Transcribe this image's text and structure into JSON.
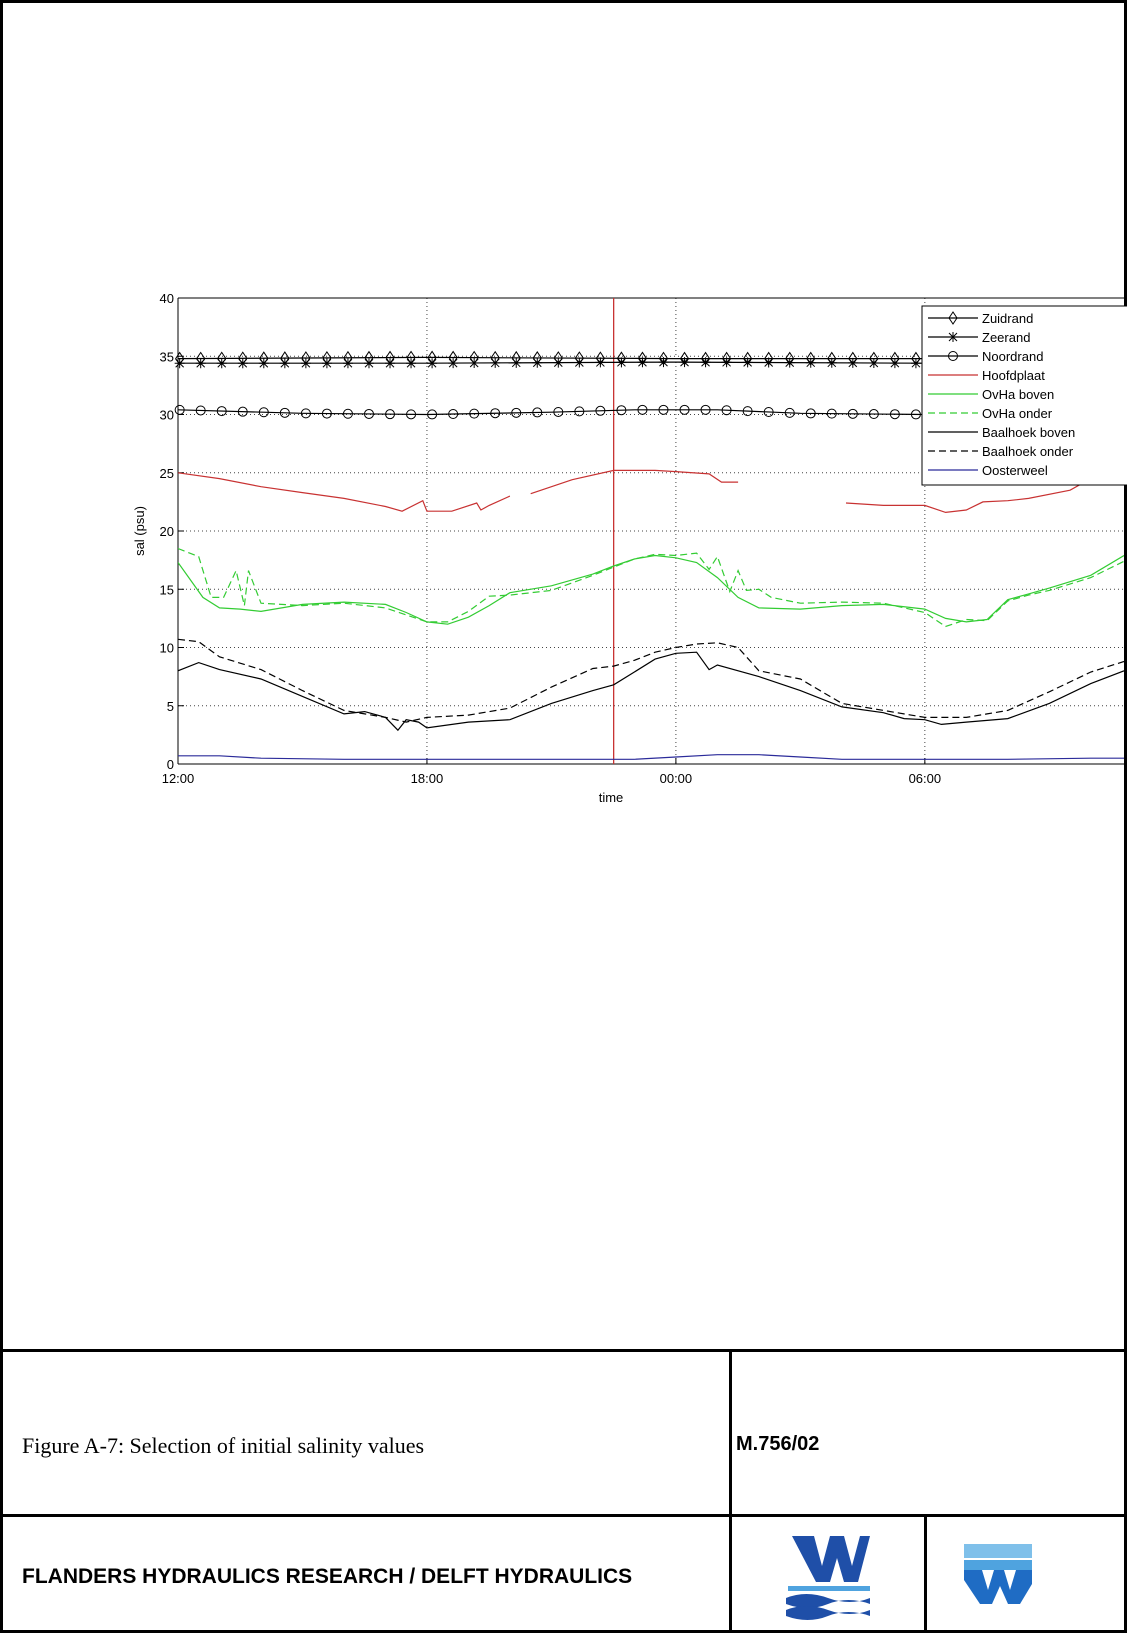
{
  "figure": {
    "caption": "Figure A-7: Selection of initial salinity values",
    "code": "M.756/02",
    "organization": "FLANDERS HYDRAULICS RESEARCH / DELFT HYDRAULICS",
    "logos": [
      {
        "name": "flanders-hydraulics-logo",
        "colors": [
          "#1f4fa8",
          "#4fa3df"
        ]
      },
      {
        "name": "delft-hydraulics-logo",
        "colors": [
          "#4fa3df",
          "#1f6cc4"
        ]
      }
    ]
  },
  "chart_data": {
    "type": "line",
    "title": "",
    "xlabel": "time",
    "ylabel": "sal (psu)",
    "xlim": [
      0,
      22.8
    ],
    "ylim": [
      0,
      40
    ],
    "x_unit": "hours since 12:00",
    "xticks": [
      0,
      6,
      12,
      18
    ],
    "xtick_labels": [
      "12:00",
      "18:00",
      "00:00",
      "06:00"
    ],
    "yticks": [
      0,
      5,
      10,
      15,
      20,
      25,
      30,
      35,
      40
    ],
    "ytick_labels": [
      "0",
      "5",
      "10",
      "15",
      "20",
      "25",
      "30",
      "35",
      "40"
    ],
    "grid": true,
    "legend_position": "top-right",
    "vertical_marker": {
      "x": 10.5,
      "color": "#c83232"
    },
    "series": [
      {
        "name": "Zuidrand",
        "color": "#000000",
        "style": "solid",
        "marker": "diamond",
        "points": [
          [
            0,
            34.8
          ],
          [
            6,
            34.9
          ],
          [
            12,
            34.8
          ],
          [
            18,
            34.8
          ],
          [
            22.8,
            34.9
          ]
        ]
      },
      {
        "name": "Zeerand",
        "color": "#000000",
        "style": "solid",
        "marker": "star",
        "points": [
          [
            0,
            34.4
          ],
          [
            6,
            34.4
          ],
          [
            12,
            34.5
          ],
          [
            18,
            34.4
          ],
          [
            22.8,
            34.4
          ]
        ]
      },
      {
        "name": "Noordrand",
        "color": "#000000",
        "style": "solid",
        "marker": "circle",
        "points": [
          [
            0,
            30.4
          ],
          [
            3,
            30.1
          ],
          [
            6,
            30.0
          ],
          [
            9,
            30.2
          ],
          [
            11,
            30.4
          ],
          [
            13,
            30.4
          ],
          [
            15,
            30.1
          ],
          [
            18,
            30.0
          ],
          [
            22.8,
            30.0
          ]
        ]
      },
      {
        "name": "Hoofdplaat",
        "color": "#c83232",
        "style": "solid",
        "marker": "none",
        "segments": [
          [
            [
              0,
              25.0
            ],
            [
              1,
              24.5
            ],
            [
              2,
              23.8
            ],
            [
              3,
              23.3
            ],
            [
              4,
              22.8
            ],
            [
              5,
              22.1
            ],
            [
              5.4,
              21.7
            ],
            [
              5.9,
              22.6
            ],
            [
              6,
              21.7
            ],
            [
              6.6,
              21.7
            ],
            [
              7.2,
              22.4
            ],
            [
              7.3,
              21.8
            ],
            [
              7.5,
              22.2
            ],
            [
              8,
              23.0
            ]
          ],
          [
            [
              8.5,
              23.2
            ],
            [
              9.5,
              24.4
            ],
            [
              10.5,
              25.2
            ],
            [
              11.5,
              25.2
            ],
            [
              12,
              25.1
            ],
            [
              12.8,
              24.9
            ],
            [
              13.1,
              24.2
            ],
            [
              13.5,
              24.2
            ]
          ],
          [
            [
              16.1,
              22.4
            ],
            [
              17,
              22.2
            ],
            [
              18,
              22.2
            ],
            [
              18.5,
              21.6
            ],
            [
              19,
              21.8
            ],
            [
              19.4,
              22.5
            ],
            [
              20,
              22.6
            ],
            [
              20.5,
              22.8
            ],
            [
              21.5,
              23.5
            ],
            [
              22,
              24.5
            ],
            [
              22.8,
              25.1
            ]
          ]
        ]
      },
      {
        "name": "OvHa boven",
        "color": "#33cc33",
        "style": "solid",
        "marker": "none",
        "points": [
          [
            0,
            17.3
          ],
          [
            0.6,
            14.3
          ],
          [
            1,
            13.4
          ],
          [
            1.5,
            13.3
          ],
          [
            2,
            13.1
          ],
          [
            3,
            13.7
          ],
          [
            4,
            13.9
          ],
          [
            5,
            13.7
          ],
          [
            5.5,
            13.0
          ],
          [
            6,
            12.2
          ],
          [
            6.5,
            12.0
          ],
          [
            7,
            12.6
          ],
          [
            7.5,
            13.6
          ],
          [
            8,
            14.7
          ],
          [
            9,
            15.3
          ],
          [
            10,
            16.3
          ],
          [
            10.5,
            17.0
          ],
          [
            11,
            17.6
          ],
          [
            11.5,
            17.9
          ],
          [
            12,
            17.7
          ],
          [
            12.5,
            17.3
          ],
          [
            13,
            16.0
          ],
          [
            13.5,
            14.3
          ],
          [
            14,
            13.4
          ],
          [
            15,
            13.3
          ],
          [
            16,
            13.6
          ],
          [
            17,
            13.7
          ],
          [
            18,
            13.3
          ],
          [
            18.5,
            12.5
          ],
          [
            19,
            12.2
          ],
          [
            19.5,
            12.4
          ],
          [
            20,
            14.1
          ],
          [
            20.5,
            14.6
          ],
          [
            21,
            15.1
          ],
          [
            22,
            16.2
          ],
          [
            22.8,
            17.9
          ]
        ]
      },
      {
        "name": "OvHa onder",
        "color": "#33cc33",
        "style": "dashed",
        "marker": "none",
        "points": [
          [
            0,
            18.5
          ],
          [
            0.5,
            17.8
          ],
          [
            0.8,
            14.3
          ],
          [
            1.1,
            14.3
          ],
          [
            1.4,
            16.6
          ],
          [
            1.6,
            13.6
          ],
          [
            1.7,
            16.6
          ],
          [
            2,
            13.8
          ],
          [
            3,
            13.6
          ],
          [
            4,
            13.8
          ],
          [
            5,
            13.4
          ],
          [
            6,
            12.2
          ],
          [
            6.5,
            12.2
          ],
          [
            7,
            13.1
          ],
          [
            7.5,
            14.4
          ],
          [
            8,
            14.5
          ],
          [
            9,
            14.9
          ],
          [
            10,
            16.2
          ],
          [
            10.5,
            16.9
          ],
          [
            11,
            17.6
          ],
          [
            11.5,
            18.0
          ],
          [
            12,
            17.9
          ],
          [
            12.5,
            18.1
          ],
          [
            12.8,
            16.7
          ],
          [
            13,
            17.8
          ],
          [
            13.3,
            14.8
          ],
          [
            13.5,
            16.6
          ],
          [
            13.7,
            14.9
          ],
          [
            14,
            15.0
          ],
          [
            14.3,
            14.3
          ],
          [
            15,
            13.8
          ],
          [
            16,
            13.9
          ],
          [
            17,
            13.8
          ],
          [
            18,
            13.0
          ],
          [
            18.5,
            11.8
          ],
          [
            19,
            12.4
          ],
          [
            19.5,
            12.3
          ],
          [
            20,
            14.0
          ],
          [
            20.5,
            14.5
          ],
          [
            21,
            14.9
          ],
          [
            22,
            16.0
          ],
          [
            22.8,
            17.4
          ]
        ]
      },
      {
        "name": "Baalhoek boven",
        "color": "#000000",
        "style": "solid",
        "marker": "none",
        "points": [
          [
            0,
            8.0
          ],
          [
            0.5,
            8.7
          ],
          [
            1,
            8.1
          ],
          [
            2,
            7.3
          ],
          [
            3,
            5.8
          ],
          [
            4,
            4.3
          ],
          [
            4.5,
            4.5
          ],
          [
            5,
            4.0
          ],
          [
            5.3,
            2.9
          ],
          [
            5.5,
            3.8
          ],
          [
            5.8,
            3.6
          ],
          [
            6,
            3.1
          ],
          [
            7,
            3.6
          ],
          [
            8,
            3.8
          ],
          [
            9,
            5.2
          ],
          [
            10,
            6.3
          ],
          [
            10.5,
            6.8
          ],
          [
            11,
            7.9
          ],
          [
            11.5,
            9.0
          ],
          [
            12,
            9.5
          ],
          [
            12.5,
            9.6
          ],
          [
            12.8,
            8.1
          ],
          [
            13,
            8.5
          ],
          [
            14,
            7.5
          ],
          [
            15,
            6.3
          ],
          [
            16,
            4.9
          ],
          [
            17,
            4.4
          ],
          [
            17.5,
            3.9
          ],
          [
            18,
            3.8
          ],
          [
            18.4,
            3.4
          ],
          [
            19,
            3.6
          ],
          [
            20,
            3.9
          ],
          [
            21,
            5.2
          ],
          [
            22,
            6.9
          ],
          [
            22.8,
            8.0
          ]
        ]
      },
      {
        "name": "Baalhoek onder",
        "color": "#000000",
        "style": "dashed",
        "marker": "none",
        "points": [
          [
            0,
            10.7
          ],
          [
            0.5,
            10.5
          ],
          [
            1,
            9.2
          ],
          [
            2,
            8.1
          ],
          [
            3,
            6.3
          ],
          [
            4,
            4.6
          ],
          [
            5,
            4.0
          ],
          [
            5.5,
            3.6
          ],
          [
            6,
            4.0
          ],
          [
            7,
            4.2
          ],
          [
            8,
            4.8
          ],
          [
            9,
            6.6
          ],
          [
            10,
            8.2
          ],
          [
            10.5,
            8.4
          ],
          [
            11,
            8.9
          ],
          [
            11.5,
            9.6
          ],
          [
            12,
            10.0
          ],
          [
            12.5,
            10.3
          ],
          [
            13,
            10.4
          ],
          [
            13.5,
            10.0
          ],
          [
            14,
            8.0
          ],
          [
            15,
            7.3
          ],
          [
            16,
            5.2
          ],
          [
            17,
            4.6
          ],
          [
            18,
            4.0
          ],
          [
            19,
            4.0
          ],
          [
            19.5,
            4.3
          ],
          [
            20,
            4.6
          ],
          [
            21,
            6.2
          ],
          [
            22,
            7.9
          ],
          [
            22.8,
            8.8
          ]
        ]
      },
      {
        "name": "Oosterweel",
        "color": "#2b2b9a",
        "style": "solid",
        "marker": "none",
        "points": [
          [
            0,
            0.7
          ],
          [
            1,
            0.7
          ],
          [
            2,
            0.5
          ],
          [
            4,
            0.4
          ],
          [
            6,
            0.4
          ],
          [
            8,
            0.4
          ],
          [
            10,
            0.4
          ],
          [
            11,
            0.4
          ],
          [
            12,
            0.6
          ],
          [
            13,
            0.8
          ],
          [
            14,
            0.8
          ],
          [
            15,
            0.6
          ],
          [
            16,
            0.4
          ],
          [
            18,
            0.4
          ],
          [
            20,
            0.4
          ],
          [
            22,
            0.5
          ],
          [
            22.8,
            0.5
          ]
        ]
      }
    ]
  }
}
